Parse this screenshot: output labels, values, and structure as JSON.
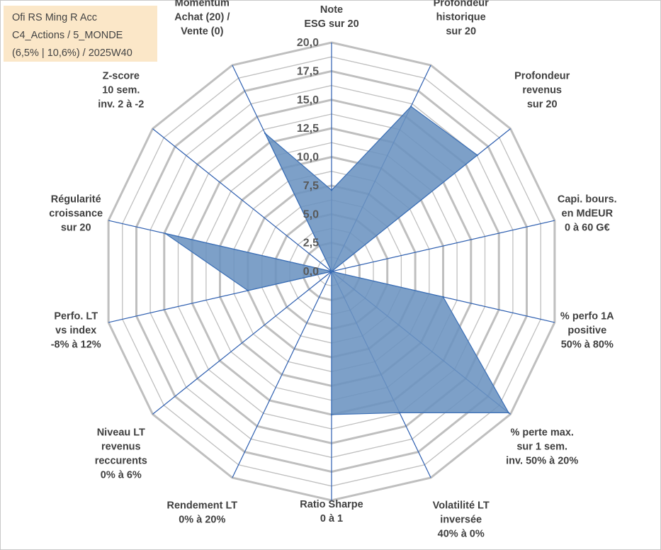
{
  "info": {
    "line1": "Ofi RS Ming R Acc",
    "line2": "C4_Actions / 5_MONDE",
    "line3": "(6,5% | 10,6%) / 2025W40"
  },
  "colors": {
    "fill": "#6b93c0",
    "stroke": "#3a6eb5",
    "grid": "#bfbfbf",
    "spoke": "#2e5fb0"
  },
  "chart_data": {
    "type": "radar",
    "rmin": 0,
    "rmax": 20,
    "tick_step": 2.5,
    "tick_labels": [
      "0,0",
      "2,5",
      "5,0",
      "7,5",
      "10,0",
      "12,5",
      "15,0",
      "17,5",
      "20,0"
    ],
    "axes": [
      {
        "label": [
          "Note",
          "ESG sur 20"
        ],
        "value": 7.1
      },
      {
        "label": [
          "Profondeur",
          "historique",
          "sur 20"
        ],
        "value": 16.0
      },
      {
        "label": [
          "Profondeur",
          "revenus",
          "sur 20"
        ],
        "value": 16.3
      },
      {
        "label": [
          "Capi. bours.",
          "en MdEUR",
          "0 à 60 G€"
        ],
        "value": 0.0
      },
      {
        "label": [
          "% perfo 1A",
          "positive",
          "50% à 80%"
        ],
        "value": 10.0
      },
      {
        "label": [
          "% perte max.",
          "sur 1 sem.",
          "inv. 50% à 20%"
        ],
        "value": 19.8
      },
      {
        "label": [
          "Volatilité LT",
          "inversée",
          "40% à 0%"
        ],
        "value": 13.7
      },
      {
        "label": [
          "Ratio Sharpe",
          "0 à 1"
        ],
        "value": 12.5
      },
      {
        "label": [
          "Rendement LT",
          "0% à 20%"
        ],
        "value": 0.0
      },
      {
        "label": [
          "Niveau LT",
          "revenus",
          "reccurents",
          "0% à 6%"
        ],
        "value": 0.0
      },
      {
        "label": [
          "Perfo. LT",
          "vs index",
          "-8% à 12%"
        ],
        "value": 7.5
      },
      {
        "label": [
          "Régularité",
          "croissance",
          "sur 20"
        ],
        "value": 14.9
      },
      {
        "label": [
          "Z-score",
          "10 sem.",
          "inv. 2 à -2"
        ],
        "value": 0.0
      },
      {
        "label": [
          "Momentum",
          "Achat (20) /",
          "Vente (0)"
        ],
        "value": 13.4
      }
    ]
  }
}
